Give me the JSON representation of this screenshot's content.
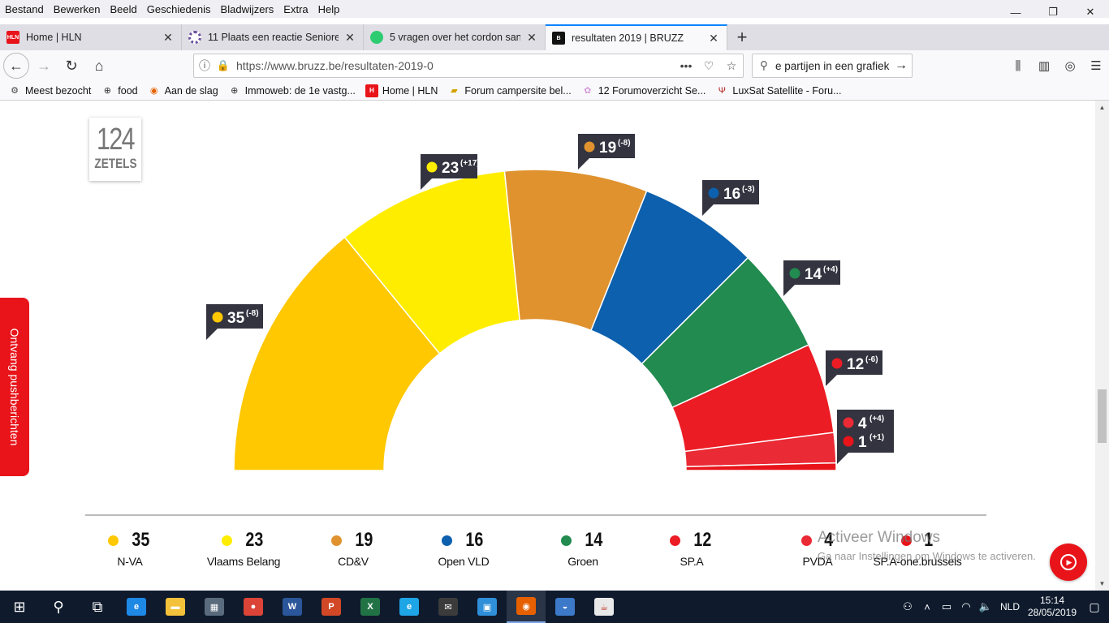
{
  "menu": [
    "Bestand",
    "Bewerken",
    "Beeld",
    "Geschiedenis",
    "Bladwijzers",
    "Extra",
    "Help"
  ],
  "window_controls": {
    "minimize": "—",
    "restore": "❐",
    "close": "✕"
  },
  "tabs": [
    {
      "label": "Home | HLN",
      "favicon": "HLN",
      "color": "#e8141a"
    },
    {
      "label": "11 Plaats een reactie SeniorenNet",
      "favicon": "",
      "color": "#6b4fa0"
    },
    {
      "label": "5 vragen over het cordon sanitaire",
      "favicon": "",
      "color": "#2ecc71"
    },
    {
      "label": "resultaten 2019 | BRUZZ",
      "favicon": "B",
      "color": "#111111",
      "active": true
    }
  ],
  "nav": {
    "url": "https://www.bruzz.be/resultaten-2019-0",
    "search_value": "e partijen in een grafiek"
  },
  "bookmarks": [
    {
      "label": "Meest bezocht",
      "icon": "gear-icon"
    },
    {
      "label": "food",
      "icon": "globe-icon"
    },
    {
      "label": "Aan de slag",
      "icon": "firefox-icon"
    },
    {
      "label": "Immoweb: de 1e vastg...",
      "icon": "globe-icon"
    },
    {
      "label": "Home | HLN",
      "icon": "hln-icon"
    },
    {
      "label": "Forum campersite bel...",
      "icon": "camper-icon"
    },
    {
      "label": "12 Forumoverzicht Se...",
      "icon": "flower-icon"
    },
    {
      "label": "LuxSat Satellite - Foru...",
      "icon": "sat-icon"
    }
  ],
  "seats_box": {
    "number": "124",
    "label": "ZETELS"
  },
  "push_label": "Ontvang pushberichten",
  "chart_data": {
    "type": "pie",
    "variant": "half-donut (parliament)",
    "title": "",
    "total": 124,
    "parties": [
      {
        "name": "N-VA",
        "seats": 35,
        "change": "(-8)",
        "color": "#ffc800"
      },
      {
        "name": "Vlaams Belang",
        "seats": 23,
        "change": "(+17)",
        "color": "#ffed00"
      },
      {
        "name": "CD&V",
        "seats": 19,
        "change": "(-8)",
        "color": "#df922e"
      },
      {
        "name": "Open VLD",
        "seats": 16,
        "change": "(-3)",
        "color": "#0d60ad"
      },
      {
        "name": "Groen",
        "seats": 14,
        "change": "(+4)",
        "color": "#228b4f"
      },
      {
        "name": "SP.A",
        "seats": 12,
        "change": "(-6)",
        "color": "#ec1c24"
      },
      {
        "name": "PVDA",
        "seats": 4,
        "change": "(+4)",
        "color": "#ea2a35"
      },
      {
        "name": "SP.A-one.brussels",
        "seats": 1,
        "change": "(+1)",
        "color": "#e8141a"
      }
    ]
  },
  "watermark": {
    "line1": "Activeer Windows",
    "line2": "Ga naar Instellingen om Windows te activeren."
  },
  "taskbar": {
    "apps": [
      {
        "name": "start-icon",
        "label": "⊞",
        "color": "transparent"
      },
      {
        "name": "search-icon",
        "label": "⚲",
        "color": "transparent"
      },
      {
        "name": "task-view-icon",
        "label": "⧉",
        "color": "transparent"
      },
      {
        "name": "edge-icon",
        "label": "e",
        "color": "#1e88e5"
      },
      {
        "name": "explorer-icon",
        "label": "▬",
        "color": "#f3c13a"
      },
      {
        "name": "store-icon",
        "label": "▦",
        "color": "#5a6b7d"
      },
      {
        "name": "chrome-icon",
        "label": "●",
        "color": "#db4437"
      },
      {
        "name": "word-icon",
        "label": "W",
        "color": "#2b579a"
      },
      {
        "name": "powerpoint-icon",
        "label": "P",
        "color": "#d24726"
      },
      {
        "name": "excel-icon",
        "label": "X",
        "color": "#217346"
      },
      {
        "name": "ie-icon",
        "label": "e",
        "color": "#1ea5e6"
      },
      {
        "name": "mail-icon",
        "label": "✉",
        "color": "#3b3b3b"
      },
      {
        "name": "remote-icon",
        "label": "▣",
        "color": "#2f8fd8"
      },
      {
        "name": "firefox-icon",
        "label": "◉",
        "color": "#e66000",
        "active": true
      },
      {
        "name": "thunderbird-icon",
        "label": "◒",
        "color": "#3d79c9"
      },
      {
        "name": "java-icon",
        "label": "☕",
        "color": "#e9e9e9"
      }
    ],
    "language": "NLD",
    "time": "15:14",
    "date": "28/05/2019"
  }
}
